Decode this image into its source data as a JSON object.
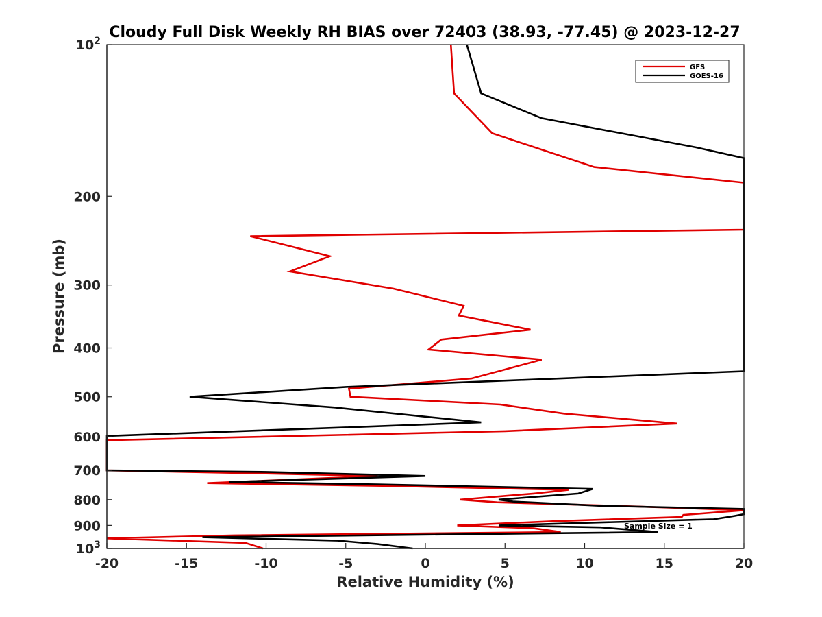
{
  "chart_data": {
    "type": "line",
    "title": "Cloudy Full Disk Weekly RH BIAS over 72403 (38.93, -77.45) @ 2023-12-27",
    "xlabel": "Relative Humidity (%)",
    "ylabel": "Pressure (mb)",
    "xlim": [
      -20,
      20
    ],
    "ylim": [
      100,
      1000
    ],
    "y_scale": "log",
    "y_reversed": true,
    "x_ticks": [
      -20,
      -15,
      -10,
      -5,
      0,
      5,
      10,
      15,
      20
    ],
    "y_ticks": [
      100,
      200,
      300,
      400,
      500,
      600,
      700,
      800,
      900,
      1000
    ],
    "y_tick_labels": {
      "base": "10",
      "exp_100": "2",
      "exp_1000": "3",
      "200": "200",
      "300": "300",
      "400": "400",
      "500": "500",
      "600": "600",
      "700": "700",
      "800": "800",
      "900": "900"
    },
    "grid": false,
    "legend_position": "top-right",
    "series": [
      {
        "name": "GFS",
        "color": "#e00000",
        "points": [
          [
            1.6,
            100
          ],
          [
            1.8,
            125
          ],
          [
            4.2,
            150
          ],
          [
            10.6,
            175
          ],
          [
            20,
            188
          ],
          [
            20,
            233
          ],
          [
            -11,
            240
          ],
          [
            -6,
            263
          ],
          [
            -8.5,
            282
          ],
          [
            -2,
            305
          ],
          [
            2.4,
            330
          ],
          [
            2.1,
            345
          ],
          [
            6.6,
            368
          ],
          [
            1.0,
            385
          ],
          [
            0.2,
            403
          ],
          [
            7.3,
            422
          ],
          [
            2.9,
            460
          ],
          [
            -4.8,
            482
          ],
          [
            -4.7,
            500
          ],
          [
            4.7,
            518
          ],
          [
            8.7,
            540
          ],
          [
            15.8,
            565
          ],
          [
            5.0,
            585
          ],
          [
            -20,
            610
          ],
          [
            -20,
            700
          ],
          [
            -10,
            710
          ],
          [
            -3,
            718
          ],
          [
            -13.7,
            742
          ],
          [
            -2.0,
            752
          ],
          [
            9.0,
            765
          ],
          [
            6.8,
            778
          ],
          [
            2.2,
            800
          ],
          [
            4.5,
            810
          ],
          [
            13.0,
            825
          ],
          [
            20,
            840
          ],
          [
            16.2,
            858
          ],
          [
            16.1,
            866
          ],
          [
            8.0,
            883
          ],
          [
            2.0,
            900
          ],
          [
            6.8,
            912
          ],
          [
            8.5,
            928
          ],
          [
            -12.0,
            942
          ],
          [
            -20,
            955
          ],
          [
            -11.3,
            975
          ],
          [
            -10.2,
            1000
          ]
        ]
      },
      {
        "name": "GOES-16",
        "color": "#000000",
        "points": [
          [
            2.6,
            100
          ],
          [
            3.5,
            125
          ],
          [
            7.3,
            140
          ],
          [
            17.0,
            160
          ],
          [
            20,
            168
          ],
          [
            20,
            445
          ],
          [
            -5.0,
            478
          ],
          [
            -14.8,
            500
          ],
          [
            -5.7,
            525
          ],
          [
            3.5,
            562
          ],
          [
            -5.0,
            575
          ],
          [
            -20,
            598
          ],
          [
            -20,
            700
          ],
          [
            -10,
            705
          ],
          [
            0,
            718
          ],
          [
            -12.3,
            738
          ],
          [
            -3.0,
            746
          ],
          [
            10.5,
            762
          ],
          [
            9.6,
            778
          ],
          [
            4.6,
            800
          ],
          [
            5.5,
            807
          ],
          [
            11.0,
            823
          ],
          [
            20,
            835
          ],
          [
            20,
            855
          ],
          [
            19.4,
            862
          ],
          [
            18.1,
            875
          ],
          [
            11.0,
            888
          ],
          [
            4.6,
            900
          ],
          [
            11.0,
            908
          ],
          [
            14.6,
            928
          ],
          [
            -14.0,
            950
          ],
          [
            -5.5,
            965
          ],
          [
            -3.0,
            980
          ],
          [
            -0.8,
            1000
          ]
        ]
      }
    ],
    "annotation": "Sample Size = 1"
  }
}
